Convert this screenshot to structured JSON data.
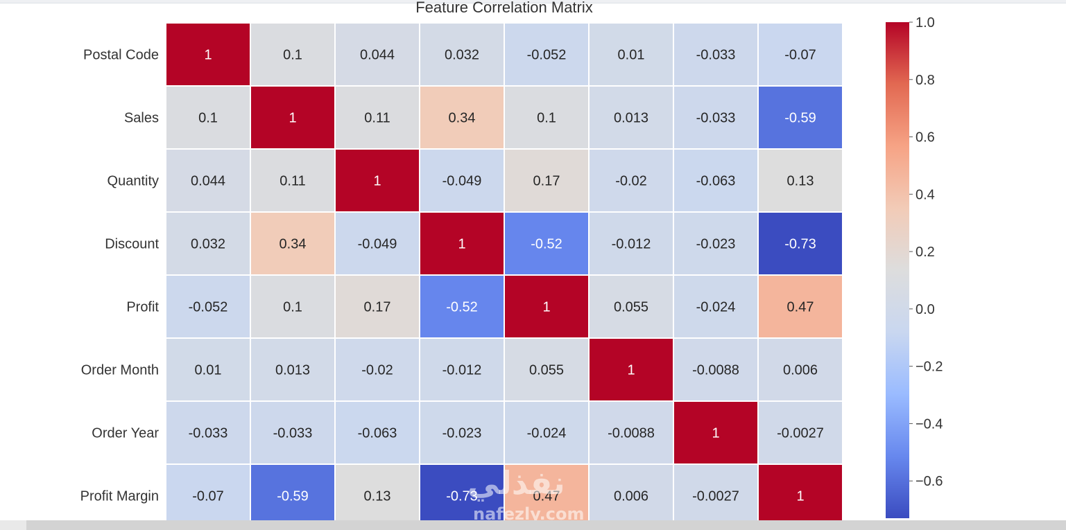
{
  "chart_data": {
    "type": "heatmap",
    "title": "Feature Correlation Matrix",
    "row_labels": [
      "Postal Code",
      "Sales",
      "Quantity",
      "Discount",
      "Profit",
      "Order Month",
      "Order Year",
      "Profit Margin"
    ],
    "col_labels": [],
    "values": [
      [
        1,
        0.1,
        0.044,
        0.032,
        -0.052,
        0.01,
        -0.033,
        -0.07
      ],
      [
        0.1,
        1,
        0.11,
        0.34,
        0.1,
        0.013,
        -0.033,
        -0.59
      ],
      [
        0.044,
        0.11,
        1,
        -0.049,
        0.17,
        -0.02,
        -0.063,
        0.13
      ],
      [
        0.032,
        0.34,
        -0.049,
        1,
        -0.52,
        -0.012,
        -0.023,
        -0.73
      ],
      [
        -0.052,
        0.1,
        0.17,
        -0.52,
        1,
        0.055,
        -0.024,
        0.47
      ],
      [
        0.01,
        0.013,
        -0.02,
        -0.012,
        0.055,
        1,
        -0.0088,
        0.006
      ],
      [
        -0.033,
        -0.033,
        -0.063,
        -0.023,
        -0.024,
        -0.0088,
        1,
        -0.0027
      ],
      [
        -0.07,
        -0.59,
        0.13,
        -0.73,
        0.47,
        0.006,
        -0.0027,
        1
      ]
    ],
    "cell_labels": [
      [
        "1",
        "0.1",
        "0.044",
        "0.032",
        "-0.052",
        "0.01",
        "-0.033",
        "-0.07"
      ],
      [
        "0.1",
        "1",
        "0.11",
        "0.34",
        "0.1",
        "0.013",
        "-0.033",
        "-0.59"
      ],
      [
        "0.044",
        "0.11",
        "1",
        "-0.049",
        "0.17",
        "-0.02",
        "-0.063",
        "0.13"
      ],
      [
        "0.032",
        "0.34",
        "-0.049",
        "1",
        "-0.52",
        "-0.012",
        "-0.023",
        "-0.73"
      ],
      [
        "-0.052",
        "0.1",
        "0.17",
        "-0.52",
        "1",
        "0.055",
        "-0.024",
        "0.47"
      ],
      [
        "0.01",
        "0.013",
        "-0.02",
        "-0.012",
        "0.055",
        "1",
        "-0.0088",
        "0.006"
      ],
      [
        "-0.033",
        "-0.033",
        "-0.063",
        "-0.023",
        "-0.024",
        "-0.0088",
        "1",
        "-0.0027"
      ],
      [
        "-0.07",
        "-0.59",
        "0.13",
        "-0.73",
        "0.47",
        "0.006",
        "-0.0027",
        "1"
      ]
    ],
    "colormap": "coolwarm",
    "colormap_stops": [
      "#3b4cc0",
      "#6788ee",
      "#9abbff",
      "#c9d7f0",
      "#dddddd",
      "#f2cbb7",
      "#f6a385",
      "#e26952",
      "#b40426"
    ],
    "colorbar": {
      "vmin": -0.73,
      "vmax": 1.0,
      "ticks": [
        1.0,
        0.8,
        0.6,
        0.4,
        0.2,
        0.0,
        -0.2,
        -0.4,
        -0.6
      ],
      "tick_labels": [
        "1.0",
        "0.8",
        "0.6",
        "0.4",
        "0.2",
        "0.0",
        "−0.2",
        "−0.4",
        "−0.6"
      ]
    }
  },
  "watermark": {
    "logo_text": "نفذلي",
    "domain": "nafezly.com"
  }
}
